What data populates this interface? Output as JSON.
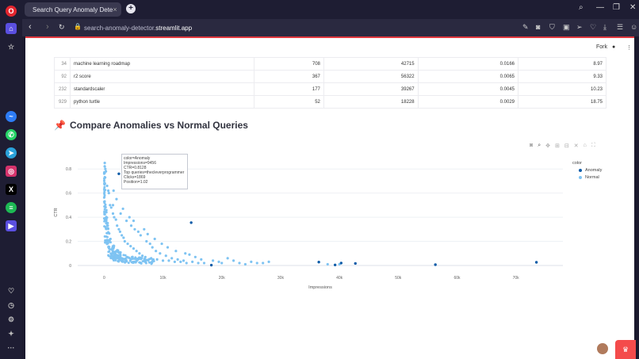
{
  "browser": {
    "tab_title": "Search Query Anomaly Dete",
    "tab_close": "×",
    "new_tab": "+",
    "url_prefix": "search-anomaly-detector.",
    "url_domain": "streamlit.app"
  },
  "sidebar_icons": [
    "opera-logo-icon",
    "home-icon",
    "star-icon",
    "messenger-icon",
    "whatsapp-icon",
    "telegram-icon",
    "instagram-icon",
    "x-icon",
    "spotify-icon",
    "aria-icon",
    "heart-icon",
    "history-icon",
    "settings-icon",
    "lightbulb-icon",
    "more-icon"
  ],
  "streamlit": {
    "fork_label": "Fork"
  },
  "table": {
    "rows": [
      {
        "idx": "34",
        "query": "machine learning roadmap",
        "clicks": "708",
        "impressions": "42715",
        "ctr": "0.0166",
        "position": "8.97"
      },
      {
        "idx": "92",
        "query": "r2 score",
        "clicks": "367",
        "impressions": "56322",
        "ctr": "0.0065",
        "position": "9.33"
      },
      {
        "idx": "232",
        "query": "standardscaler",
        "clicks": "177",
        "impressions": "39267",
        "ctr": "0.0045",
        "position": "10.23"
      },
      {
        "idx": "929",
        "query": "python turtle",
        "clicks": "52",
        "impressions": "18228",
        "ctr": "0.0029",
        "position": "18.75"
      }
    ]
  },
  "section": {
    "emoji": "📌",
    "title": "Compare Anomalies vs Normal Queries"
  },
  "tooltip": {
    "lines": [
      "color=Anomaly",
      "Impressions=9456",
      "CTR=0.8128",
      "Top queries=thecleverprogrammer",
      "Clicks=1869",
      "Position=1.02"
    ]
  },
  "chart_data": {
    "type": "scatter",
    "xlabel": "Impressions",
    "ylabel": "CTR",
    "xlim": [
      -4500,
      78000
    ],
    "ylim": [
      -0.02,
      0.9
    ],
    "x_ticks": [
      0,
      10000,
      20000,
      30000,
      40000,
      50000,
      60000,
      70000
    ],
    "x_tick_labels": [
      "0",
      "10k",
      "20k",
      "30k",
      "40k",
      "50k",
      "60k",
      "70k"
    ],
    "y_ticks": [
      0,
      0.2,
      0.4,
      0.6,
      0.8
    ],
    "y_tick_labels": [
      "0",
      "0.2",
      "0.4",
      "0.6",
      "0.8"
    ],
    "legend_title": "color",
    "legend_placement": "top-right",
    "series": [
      {
        "name": "Anomaly",
        "color": "#0e5ca8",
        "points": [
          [
            9456,
            0.8128
          ],
          [
            2500,
            0.76
          ],
          [
            14800,
            0.355
          ],
          [
            18228,
            0.0029
          ],
          [
            36500,
            0.028
          ],
          [
            39267,
            0.0045
          ],
          [
            40300,
            0.02
          ],
          [
            42715,
            0.0166
          ],
          [
            56322,
            0.0065
          ],
          [
            73500,
            0.026
          ]
        ]
      },
      {
        "name": "Normal",
        "color": "#7ec3f2",
        "points": []
      }
    ],
    "normal_samples": [
      [
        100,
        0.85
      ],
      [
        100,
        0.82
      ],
      [
        200,
        0.8
      ],
      [
        300,
        0.78
      ],
      [
        500,
        0.66
      ],
      [
        700,
        0.62
      ],
      [
        800,
        0.6
      ],
      [
        1000,
        0.5
      ],
      [
        1200,
        0.48
      ],
      [
        1500,
        0.43
      ],
      [
        1700,
        0.4
      ],
      [
        2000,
        0.38
      ],
      [
        2200,
        0.33
      ],
      [
        2500,
        0.3
      ],
      [
        2700,
        0.28
      ],
      [
        3000,
        0.25
      ],
      [
        3300,
        0.23
      ],
      [
        3500,
        0.2
      ],
      [
        4000,
        0.18
      ],
      [
        4500,
        0.16
      ],
      [
        5000,
        0.14
      ],
      [
        5500,
        0.12
      ],
      [
        6000,
        0.1
      ],
      [
        6500,
        0.08
      ],
      [
        7000,
        0.07
      ],
      [
        8000,
        0.06
      ],
      [
        9000,
        0.05
      ],
      [
        10000,
        0.04
      ],
      [
        11000,
        0.04
      ],
      [
        12000,
        0.03
      ],
      [
        13000,
        0.03
      ],
      [
        14000,
        0.02
      ],
      [
        15000,
        0.03
      ],
      [
        16000,
        0.02
      ],
      [
        17000,
        0.02
      ],
      [
        20000,
        0.02
      ],
      [
        21000,
        0.06
      ],
      [
        22000,
        0.04
      ],
      [
        25000,
        0.03
      ],
      [
        26000,
        0.02
      ],
      [
        27000,
        0.02
      ],
      [
        38000,
        0.01
      ],
      [
        40000,
        0.01
      ],
      [
        1500,
        0.5
      ],
      [
        2800,
        0.43
      ],
      [
        3800,
        0.37
      ],
      [
        4600,
        0.33
      ],
      [
        5200,
        0.3
      ],
      [
        5800,
        0.28
      ],
      [
        6200,
        0.25
      ],
      [
        7200,
        0.2
      ],
      [
        7800,
        0.18
      ],
      [
        8200,
        0.15
      ],
      [
        8800,
        0.12
      ],
      [
        9500,
        0.1
      ],
      [
        10500,
        0.08
      ],
      [
        11500,
        0.06
      ],
      [
        12500,
        0.05
      ],
      [
        13500,
        0.04
      ],
      [
        14500,
        0.09
      ],
      [
        3200,
        0.47
      ],
      [
        2100,
        0.55
      ],
      [
        1600,
        0.62
      ],
      [
        4300,
        0.4
      ],
      [
        5000,
        0.37
      ],
      [
        6800,
        0.3
      ],
      [
        7400,
        0.26
      ],
      [
        8600,
        0.22
      ],
      [
        9800,
        0.18
      ],
      [
        10800,
        0.15
      ],
      [
        12200,
        0.12
      ],
      [
        13800,
        0.1
      ],
      [
        15500,
        0.07
      ],
      [
        16500,
        0.05
      ],
      [
        18500,
        0.04
      ],
      [
        19500,
        0.03
      ],
      [
        23000,
        0.02
      ],
      [
        24000,
        0.01
      ],
      [
        28000,
        0.03
      ]
    ]
  }
}
